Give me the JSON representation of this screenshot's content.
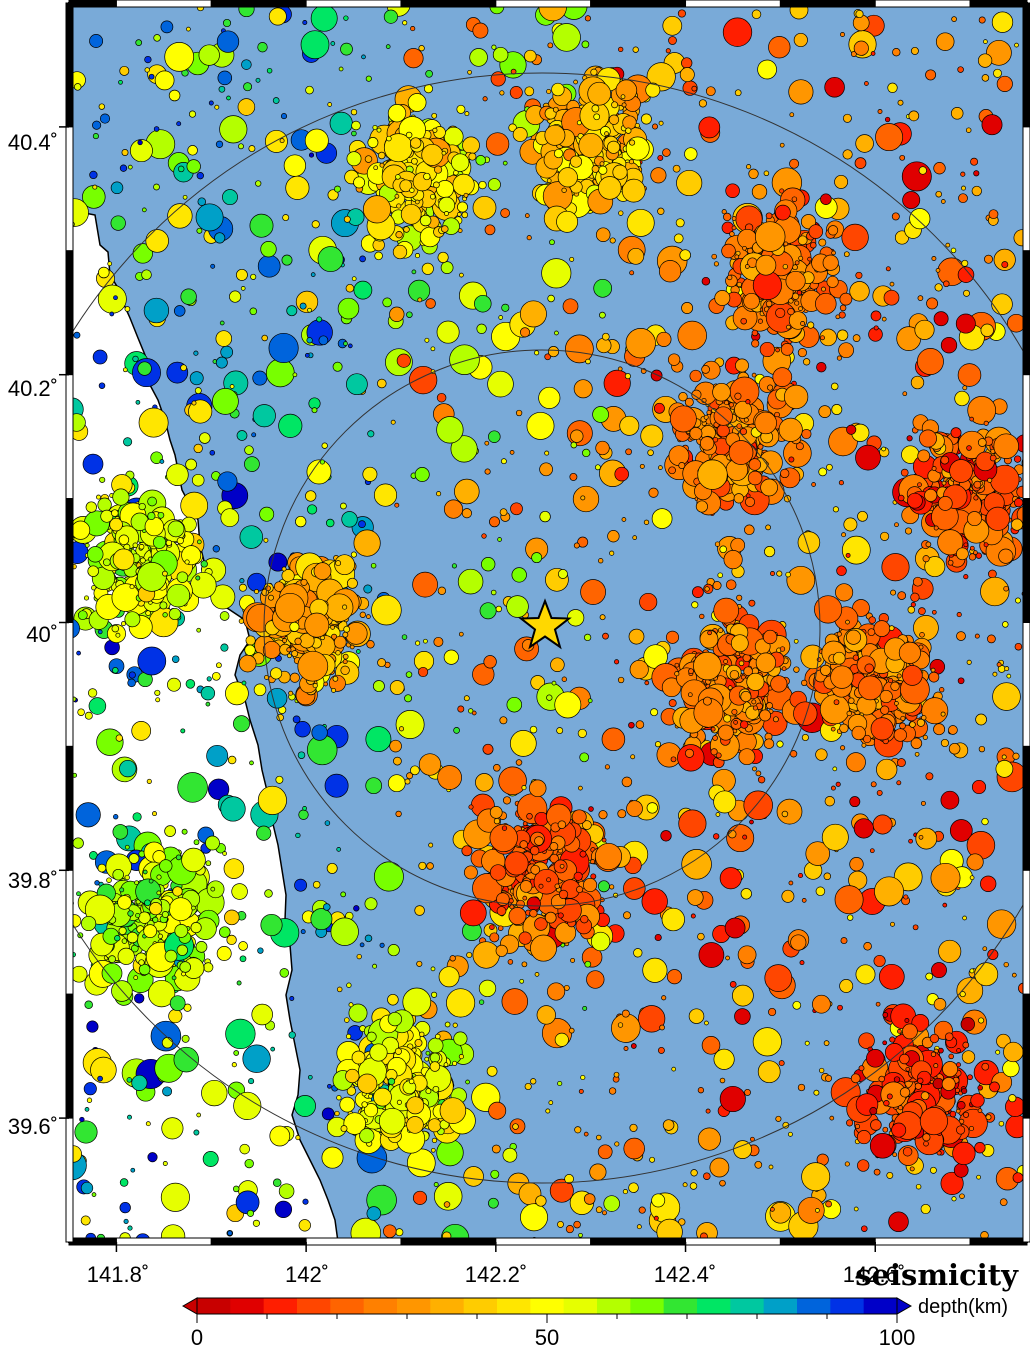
{
  "map": {
    "title": "seismicity",
    "lon_range": [
      141.75,
      142.76
    ],
    "lat_range": [
      39.5,
      40.5
    ],
    "x_ticks": [
      {
        "value": 141.8,
        "label": "141.8˚"
      },
      {
        "value": 142.0,
        "label": "142˚"
      },
      {
        "value": 142.2,
        "label": "142.2˚"
      },
      {
        "value": 142.4,
        "label": "142.4˚"
      },
      {
        "value": 142.6,
        "label": "142.6˚"
      }
    ],
    "y_ticks": [
      {
        "value": 40.4,
        "label": "40.4˚"
      },
      {
        "value": 40.2,
        "label": "40.2˚"
      },
      {
        "value": 40.0,
        "label": "40˚"
      },
      {
        "value": 39.8,
        "label": "39.8˚"
      },
      {
        "value": 39.6,
        "label": "39.6˚"
      }
    ],
    "epicenter": {
      "lon": 142.26,
      "lat": 40.005,
      "symbol": "star",
      "color": "#ffd800"
    },
    "range_circles_km": [
      30,
      50
    ],
    "sea_color": "#79aad8",
    "land_color": "#ffffff"
  },
  "colorbar": {
    "label": "depth(km)",
    "min": 0,
    "max": 100,
    "tick_labels": [
      "0",
      "50",
      "100"
    ],
    "colors": [
      "#c80000",
      "#e00000",
      "#ff1e00",
      "#ff4600",
      "#ff6400",
      "#ff8000",
      "#ff9600",
      "#ffb000",
      "#ffcc00",
      "#ffe600",
      "#ffff00",
      "#e6ff00",
      "#b4ff00",
      "#78ff00",
      "#32e632",
      "#00e664",
      "#00c8a0",
      "#00a0c8",
      "#0064dc",
      "#0032e6",
      "#0000c8"
    ]
  },
  "chart_data": {
    "type": "scatter",
    "title": "seismicity",
    "xlabel": "",
    "ylabel": "",
    "xlim": [
      141.75,
      142.76
    ],
    "ylim": [
      39.5,
      40.5
    ],
    "color_scale": "depth(km)",
    "clusters": [
      {
        "lon": 141.83,
        "lat": 40.05,
        "depth": 55
      },
      {
        "lon": 141.84,
        "lat": 39.76,
        "depth": 60
      },
      {
        "lon": 142.0,
        "lat": 40.0,
        "depth": 35
      },
      {
        "lon": 142.12,
        "lat": 40.36,
        "depth": 45
      },
      {
        "lon": 142.3,
        "lat": 40.38,
        "depth": 40
      },
      {
        "lon": 142.5,
        "lat": 40.28,
        "depth": 25
      },
      {
        "lon": 142.45,
        "lat": 40.15,
        "depth": 25
      },
      {
        "lon": 142.45,
        "lat": 39.95,
        "depth": 25
      },
      {
        "lon": 142.6,
        "lat": 39.95,
        "depth": 25
      },
      {
        "lon": 142.1,
        "lat": 39.63,
        "depth": 50
      },
      {
        "lon": 142.25,
        "lat": 39.8,
        "depth": 20
      },
      {
        "lon": 142.65,
        "lat": 39.62,
        "depth": 15
      },
      {
        "lon": 142.7,
        "lat": 40.1,
        "depth": 20
      }
    ]
  }
}
